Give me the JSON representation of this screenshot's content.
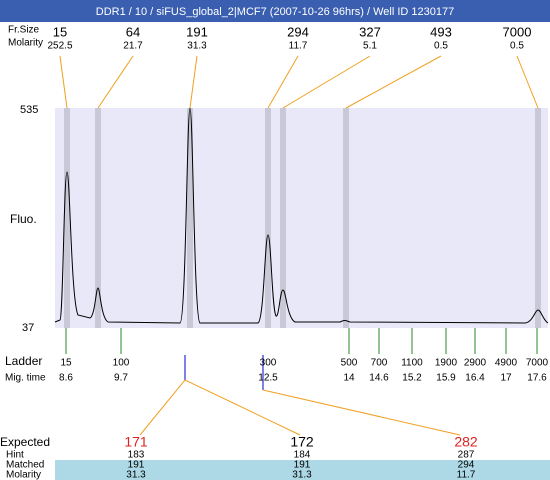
{
  "title": "DDR1 / 10 / siFUS_global_2|MCF7 (2007-10-26 96hrs) / Well ID 1230177",
  "peak_header": {
    "size_label": "Fr.Size",
    "molarity_label": "Molarity"
  },
  "peaks": [
    {
      "size": 15,
      "molarity": 252.5
    },
    {
      "size": 64,
      "molarity": 21.7
    },
    {
      "size": 191,
      "molarity": 31.3
    },
    {
      "size": 294,
      "molarity": 11.7
    },
    {
      "size": 327,
      "molarity": 5.1
    },
    {
      "size": 493,
      "molarity": 0.5
    },
    {
      "size": 7000,
      "molarity": 0.5
    }
  ],
  "y_axis": {
    "max": 535,
    "min": 37,
    "label": "Fluo."
  },
  "ladder": {
    "label": "Ladder",
    "time_label": "Mig. time",
    "items": [
      {
        "size": 15,
        "time": 8.6
      },
      {
        "size": 100,
        "time": 9.7
      },
      {
        "size": 300,
        "time": 12.5
      },
      {
        "size": 500,
        "time": 14
      },
      {
        "size": 700,
        "time": 14.6
      },
      {
        "size": 1100,
        "time": 15.2
      },
      {
        "size": 1900,
        "time": 15.9
      },
      {
        "size": 2900,
        "time": 16.4
      },
      {
        "size": 4900,
        "time": 17
      },
      {
        "size": 7000,
        "time": 17.6
      }
    ]
  },
  "table": {
    "row_labels": [
      "Expected",
      "Hint",
      "Matched",
      "Molarity"
    ],
    "columns": [
      {
        "expected": 171,
        "hint": 183,
        "matched": 191,
        "molarity": 31.3
      },
      {
        "expected": 172,
        "hint": 184,
        "matched": 191,
        "molarity": 31.3
      },
      {
        "expected": 282,
        "hint": 287,
        "matched": 294,
        "molarity": 11.7
      }
    ]
  }
}
